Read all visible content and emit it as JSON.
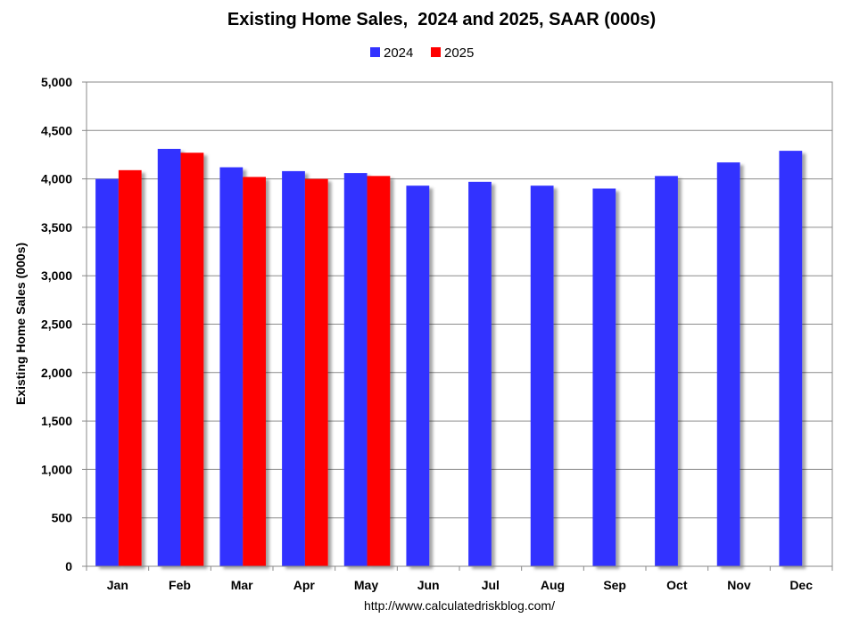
{
  "chart_data": {
    "type": "bar",
    "title": "Existing Home Sales,  2024 and 2025, SAAR (000s)",
    "xlabel": "",
    "ylabel": "Existing Home Sales (000s)",
    "ylim": [
      0,
      5000
    ],
    "yticks": [
      "0",
      "500",
      "1,000",
      "1,500",
      "2,000",
      "2,500",
      "3,000",
      "3,500",
      "4,000",
      "4,500",
      "5,000"
    ],
    "ytick_values": [
      0,
      500,
      1000,
      1500,
      2000,
      2500,
      3000,
      3500,
      4000,
      4500,
      5000
    ],
    "grid": true,
    "legend_position": "top-center",
    "categories": [
      "Jan",
      "Feb",
      "Mar",
      "Apr",
      "May",
      "Jun",
      "Jul",
      "Aug",
      "Sep",
      "Oct",
      "Nov",
      "Dec"
    ],
    "series": [
      {
        "name": "2024",
        "color": "#3333ff",
        "values": [
          4000,
          4310,
          4120,
          4080,
          4060,
          3930,
          3970,
          3930,
          3900,
          4030,
          4170,
          4290
        ]
      },
      {
        "name": "2025",
        "color": "#ff0000",
        "values": [
          4090,
          4270,
          4020,
          4000,
          4030,
          null,
          null,
          null,
          null,
          null,
          null,
          null
        ]
      }
    ],
    "source": "http://www.calculatedriskblog.com/"
  }
}
